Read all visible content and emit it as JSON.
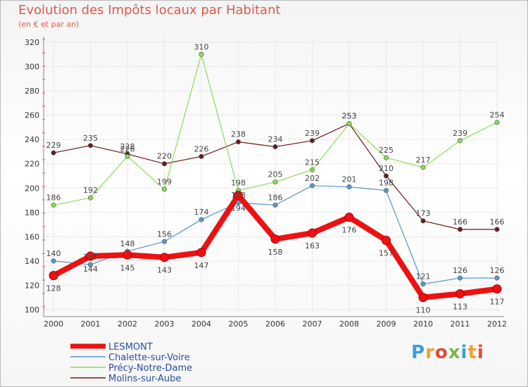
{
  "header": {
    "title": "Evolution des Impôts locaux par Habitant",
    "subtitle": "(en € et par an)"
  },
  "logo": {
    "letters": [
      "P",
      "r",
      "o",
      "x",
      "i",
      "t",
      "i"
    ],
    "colors": [
      "#3aa0d8",
      "#f0a030",
      "#e04a3a",
      "#7ab848",
      "#3aa0d8",
      "#f0a030",
      "#e04a3a"
    ]
  },
  "chart_data": {
    "type": "line",
    "title": "Evolution des Impôts locaux par Habitant",
    "subtitle": "(en € et par an)",
    "xlabel": "",
    "ylabel": "",
    "categories": [
      "2000",
      "2001",
      "2002",
      "2003",
      "2004",
      "2005",
      "2006",
      "2007",
      "2008",
      "2009",
      "2010",
      "2011",
      "2012"
    ],
    "ylim": [
      100,
      320
    ],
    "yticks": [
      100,
      120,
      140,
      160,
      180,
      200,
      220,
      240,
      260,
      280,
      300,
      320
    ],
    "grid": true,
    "legend_position": "bottom-left",
    "series": [
      {
        "name": "Molins-sur-Aube",
        "color": "#6b1a1a",
        "values": [
          229,
          235,
          228,
          220,
          226,
          238,
          234,
          239,
          253,
          210,
          173,
          166,
          166
        ]
      },
      {
        "name": "Précy-Notre-Dame",
        "color": "#88dd55",
        "values": [
          186,
          192,
          226,
          199,
          310,
          198,
          205,
          215,
          253,
          225,
          217,
          239,
          254
        ]
      },
      {
        "name": "Chalette-sur-Voire",
        "color": "#5599cc",
        "values": [
          140,
          137,
          148,
          156,
          174,
          188,
          186,
          202,
          201,
          198,
          121,
          126,
          126
        ]
      },
      {
        "name": "LESMONT",
        "color": "#ee1111",
        "values": [
          128,
          144,
          145,
          143,
          147,
          194,
          158,
          163,
          176,
          157,
          110,
          113,
          117
        ]
      }
    ],
    "data_labels": [
      [
        "229",
        "235",
        "228",
        "220",
        "226",
        "238",
        "234",
        "239",
        "253",
        "210",
        "173",
        "166",
        "166"
      ],
      [
        "186",
        "192",
        "226",
        "199",
        "310",
        "198",
        "205",
        "215",
        "253",
        "225",
        "217",
        "239",
        "254"
      ],
      [
        "140",
        "137",
        "148",
        "156",
        "174",
        "188",
        "186",
        "202",
        "201",
        "198",
        "121",
        "126",
        "126"
      ],
      [
        "128",
        "144",
        "145",
        "143",
        "147",
        "194",
        "158",
        "163",
        "176",
        "157",
        "110",
        "113",
        "117"
      ]
    ],
    "legend": [
      "LESMONT",
      "Chalette-sur-Voire",
      "Précy-Notre-Dame",
      "Molins-sur-Aube"
    ]
  }
}
